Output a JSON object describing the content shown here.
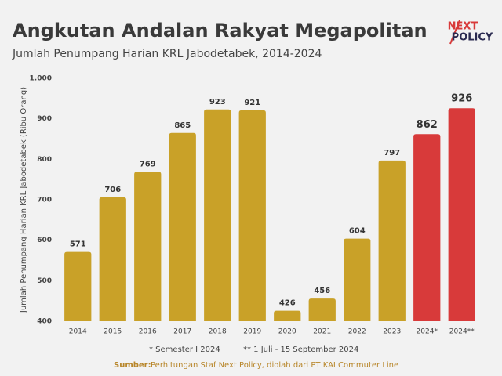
{
  "chart_data": {
    "type": "bar",
    "title": "Angkutan Andalan Rakyat Megapolitan",
    "subtitle": "Jumlah Penumpang Harian KRL Jabodetabek, 2014-2024",
    "y_label": "Jumlah Penumpang Harian KRL Jabodetabek (Ribu Orang)",
    "logo_top": "NEXT",
    "logo_bottom": "POLICY",
    "categories": [
      "2014",
      "2015",
      "2016",
      "2017",
      "2018",
      "2019",
      "2020",
      "2021",
      "2022",
      "2023",
      "2024*",
      "2024**"
    ],
    "values": [
      571,
      706,
      769,
      865,
      923,
      921,
      426,
      456,
      604,
      797,
      862,
      926
    ],
    "colors": [
      "#c9a128",
      "#c9a128",
      "#c9a128",
      "#c9a128",
      "#c9a128",
      "#c9a128",
      "#c9a128",
      "#c9a128",
      "#c9a128",
      "#c9a128",
      "#d83a3a",
      "#d83a3a"
    ],
    "ylim": [
      400,
      1000
    ],
    "yticks": [
      400,
      500,
      600,
      700,
      800,
      900,
      {
        "value": 1000,
        "label": "1.000"
      }
    ],
    "grid": false,
    "notes": [
      "* Semester I 2024",
      "** 1 Juli - 15 September 2024"
    ],
    "source_label": "Sumber:",
    "source_text": "Perhitungan Staf Next Policy, diolah dari PT KAI Commuter Line"
  }
}
